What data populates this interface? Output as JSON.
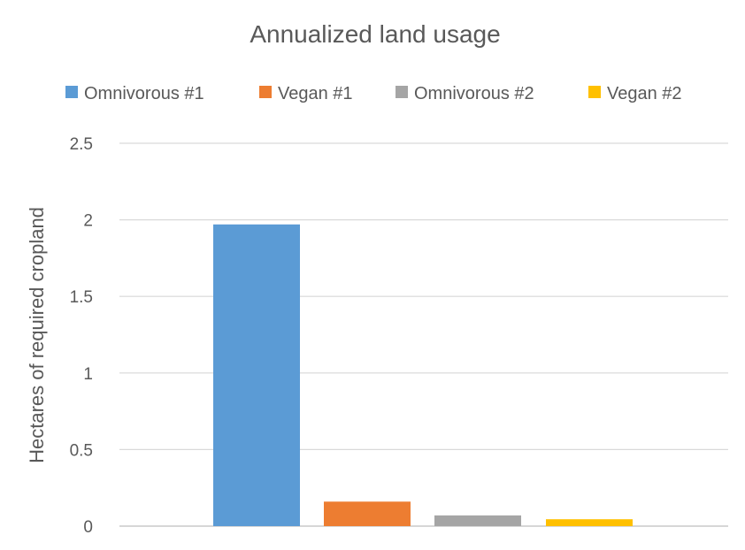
{
  "chart_data": {
    "type": "bar",
    "title": "Annualized land usage",
    "xlabel": "",
    "ylabel": "Hectares of required cropland",
    "ylim": [
      0,
      2.5
    ],
    "yticks": [
      "0",
      "0.5",
      "1",
      "1.5",
      "2",
      "2.5"
    ],
    "categories": [
      ""
    ],
    "grid": true,
    "legend_position": "top",
    "series": [
      {
        "name": "Omnivorous #1",
        "values": [
          1.97
        ],
        "color": "#5B9BD5"
      },
      {
        "name": "Vegan #1",
        "values": [
          0.16
        ],
        "color": "#ED7D31"
      },
      {
        "name": "Omnivorous #2",
        "values": [
          0.07
        ],
        "color": "#A5A5A5"
      },
      {
        "name": "Vegan #2",
        "values": [
          0.045
        ],
        "color": "#FFC000"
      }
    ]
  }
}
